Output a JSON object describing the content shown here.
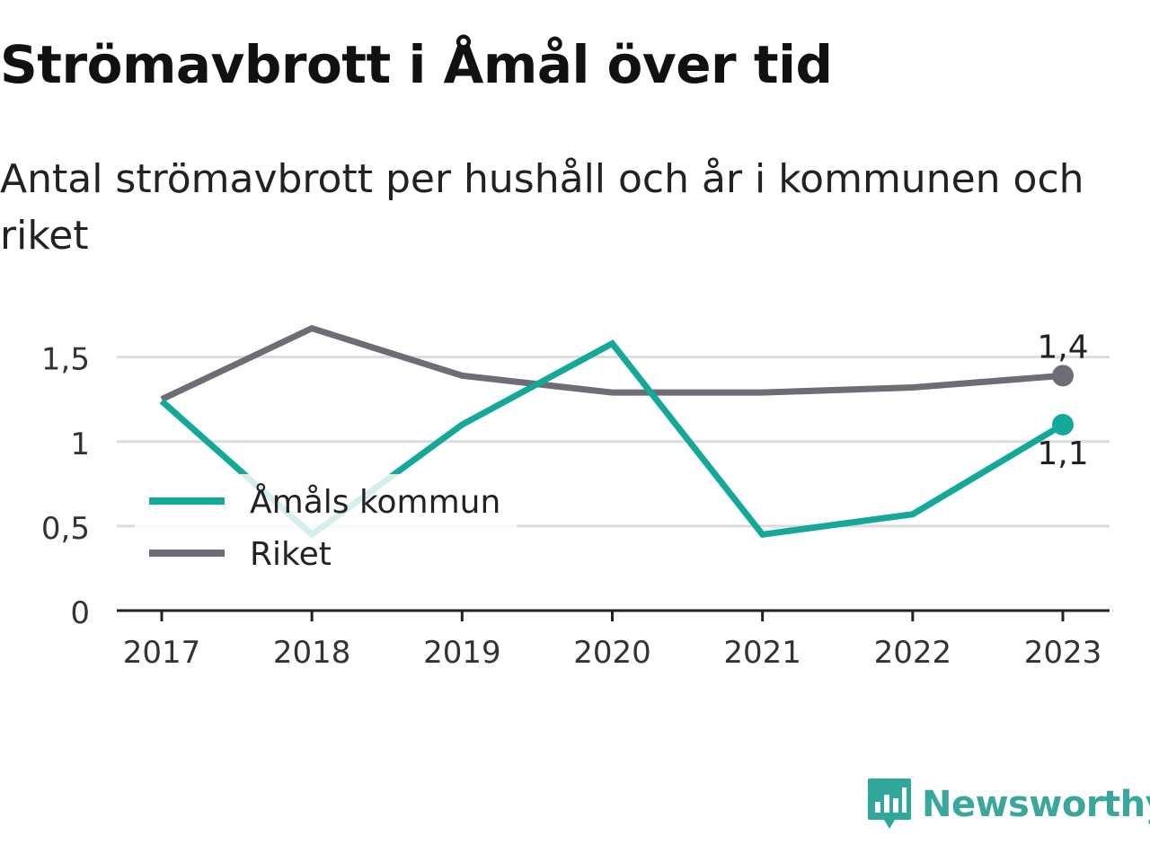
{
  "title": "Strömavbrott i Åmål över tid",
  "subtitle": "Antal strömavbrott per hushåll och år i kommunen och riket",
  "brand": {
    "name": "Newsworthy",
    "icon": "newsworthy-logo-icon",
    "color": "#2fa79a"
  },
  "chart_data": {
    "type": "line",
    "title": "Strömavbrott i Åmål över tid",
    "subtitle": "Antal strömavbrott per hushåll och år i kommunen och riket",
    "x": [
      "2017",
      "2018",
      "2019",
      "2020",
      "2021",
      "2022",
      "2023"
    ],
    "ylim": [
      0,
      1.7
    ],
    "yticks": [
      0,
      0.5,
      1,
      1.5
    ],
    "ytick_labels": [
      "0",
      "0,5",
      "1",
      "1,5"
    ],
    "grid": true,
    "legend_position": "left",
    "series": [
      {
        "name": "Åmåls kommun",
        "color": "#14a89b",
        "values": [
          1.24,
          0.45,
          1.1,
          1.58,
          0.45,
          0.57,
          1.1
        ],
        "end_label": "1,1"
      },
      {
        "name": "Riket",
        "color": "#6e6d75",
        "values": [
          1.25,
          1.67,
          1.39,
          1.29,
          1.29,
          1.32,
          1.39
        ],
        "end_label": "1,4"
      }
    ]
  }
}
